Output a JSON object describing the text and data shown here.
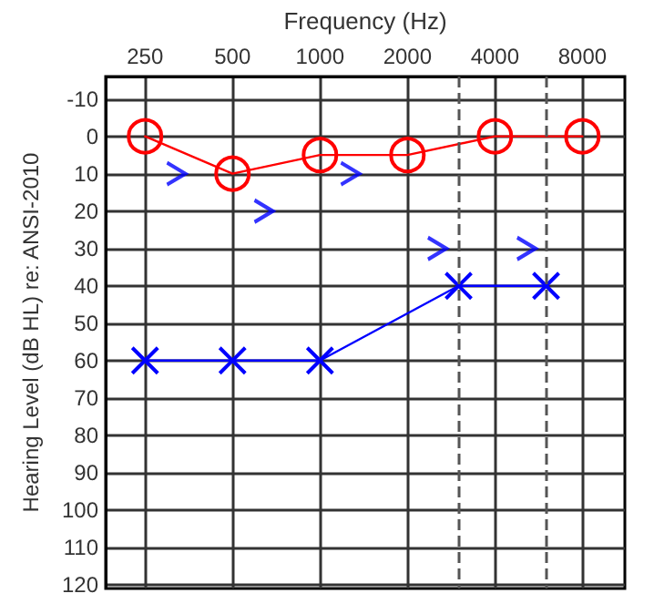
{
  "chart_data": {
    "type": "scatter",
    "xlabel": "Frequency (Hz)",
    "ylabel": "Hearing Level (dB HL) re: ANSI-2010",
    "log": "x",
    "xlim": [
      183,
      11200
    ],
    "xticks": [
      250,
      500,
      1000,
      2000,
      4000,
      8000
    ],
    "ylim": [
      121,
      -16
    ],
    "yticks": [
      -10,
      0,
      10,
      20,
      30,
      40,
      50,
      60,
      70,
      80,
      90,
      100,
      110,
      120
    ],
    "grid": true,
    "ref_lines": [
      {
        "axis": "x",
        "value": 3000,
        "line_style": "dashed",
        "color": "#555555"
      },
      {
        "axis": "x",
        "value": 6000,
        "line_style": "dashed",
        "color": "#555555"
      }
    ],
    "series": [
      {
        "type": "line",
        "marker": "circle",
        "line_style": "solid",
        "color": "#ff0000",
        "x": [
          250,
          500,
          1000,
          2000,
          4000,
          8000
        ],
        "values": [
          0,
          10,
          5,
          5,
          0,
          0
        ]
      },
      {
        "type": "line",
        "marker": "cross",
        "line_style": "solid",
        "color": "#0000ff",
        "x": [
          250,
          500,
          1000,
          3000,
          6000
        ],
        "values": [
          60,
          60,
          60,
          40,
          40
        ]
      },
      {
        "color": "#0000ff",
        "x": [
          320,
          640,
          1270,
          2530,
          5130
        ],
        "values": [
          10,
          20,
          10,
          30,
          30
        ]
      }
    ]
  }
}
